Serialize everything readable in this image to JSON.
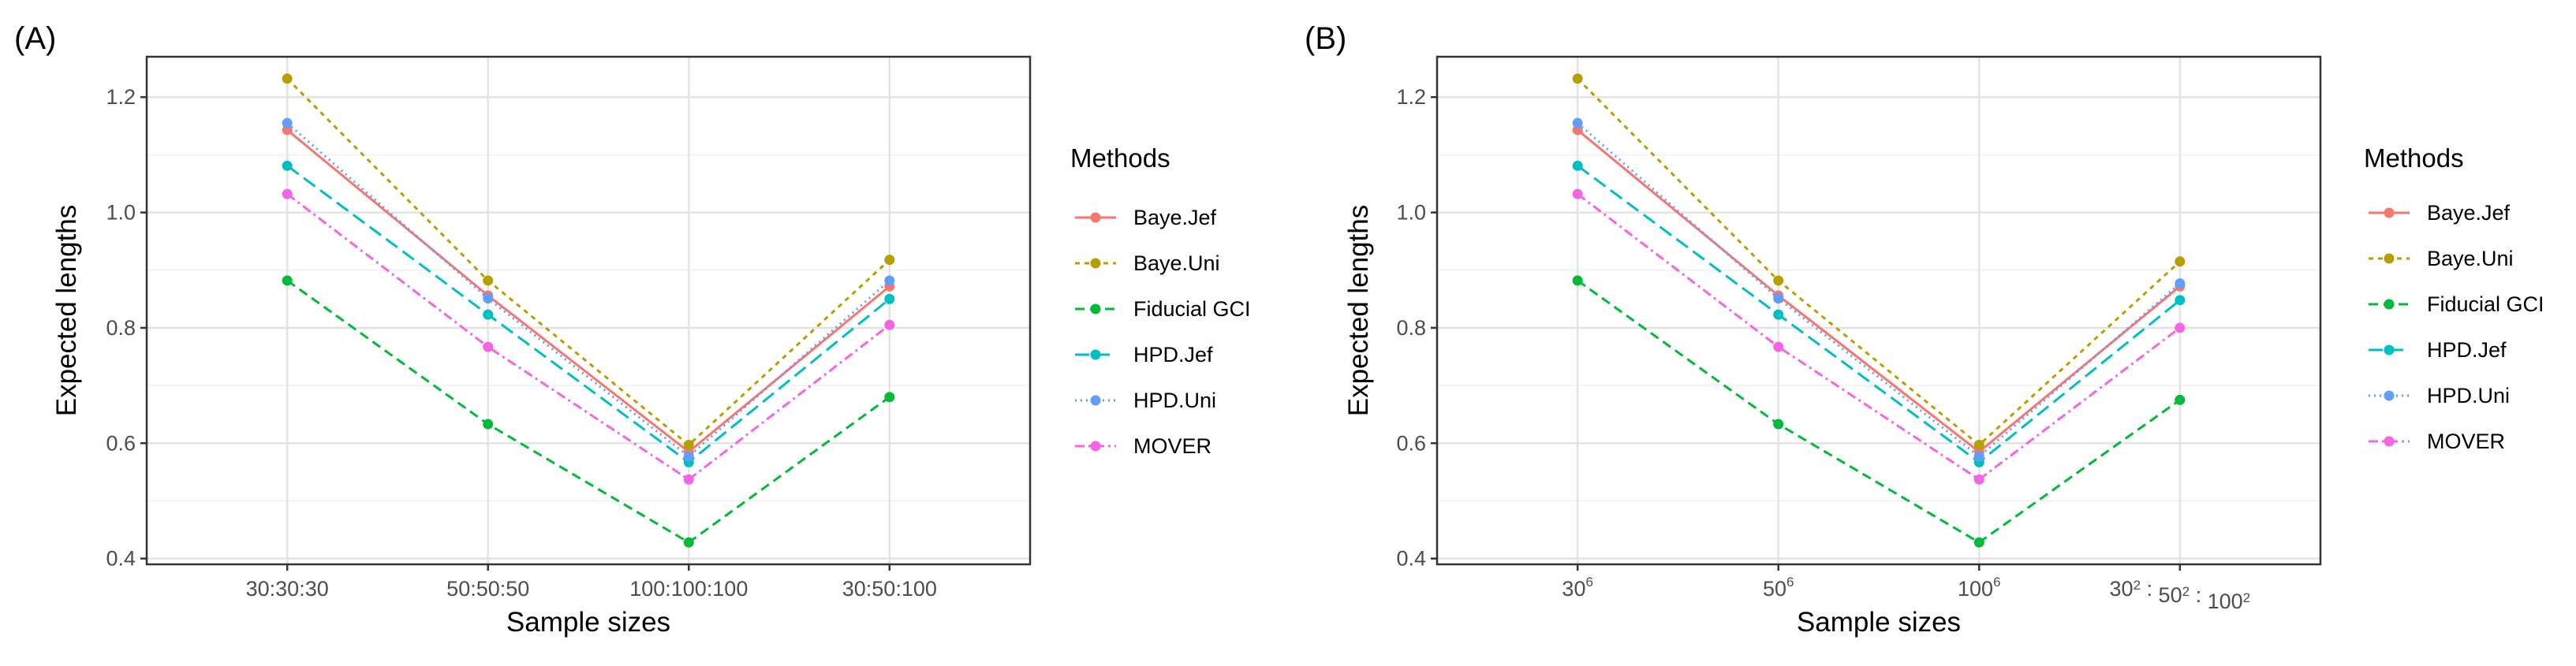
{
  "chart_data": [
    {
      "type": "line",
      "panel_label": "(A)",
      "xlabel": "Sample sizes",
      "ylabel": "Expected lengths",
      "categories": [
        {
          "base": "30:30:30",
          "sup": ""
        },
        {
          "base": "50:50:50",
          "sup": ""
        },
        {
          "base": "100:100:100",
          "sup": ""
        },
        {
          "base": "30:50:100",
          "sup": ""
        }
      ],
      "ylim": [
        0.39,
        1.27
      ],
      "yticks": [
        0.4,
        0.6,
        0.8,
        1.0,
        1.2
      ],
      "ytick_labels": [
        "0.4",
        "0.6",
        "0.8",
        "1.0",
        "1.2"
      ],
      "grid": true,
      "legend_title": "Methods",
      "series": [
        {
          "name": "Baye.Jef",
          "values": [
            1.143,
            0.856,
            0.585,
            0.872
          ]
        },
        {
          "name": "Baye.Uni",
          "values": [
            1.232,
            0.882,
            0.597,
            0.918
          ]
        },
        {
          "name": "Fiducial GCI",
          "values": [
            0.882,
            0.633,
            0.428,
            0.68
          ]
        },
        {
          "name": "HPD.Jef",
          "values": [
            1.081,
            0.823,
            0.567,
            0.85
          ]
        },
        {
          "name": "HPD.Uni",
          "values": [
            1.155,
            0.851,
            0.577,
            0.882
          ]
        },
        {
          "name": "MOVER",
          "values": [
            1.032,
            0.767,
            0.537,
            0.805
          ]
        }
      ]
    },
    {
      "type": "line",
      "panel_label": "(B)",
      "xlabel": "Sample sizes",
      "ylabel": "Expected lengths",
      "categories": [
        {
          "base": "30",
          "sup": "6"
        },
        {
          "base": "50",
          "sup": "6"
        },
        {
          "base": "100",
          "sup": "6"
        },
        {
          "base": "30",
          "sup": "2",
          "parts": [
            [
              "30",
              "2"
            ],
            [
              "50",
              "2"
            ],
            [
              "100",
              "2"
            ]
          ],
          "sep": " : "
        }
      ],
      "ylim": [
        0.39,
        1.27
      ],
      "yticks": [
        0.4,
        0.6,
        0.8,
        1.0,
        1.2
      ],
      "ytick_labels": [
        "0.4",
        "0.6",
        "0.8",
        "1.0",
        "1.2"
      ],
      "grid": true,
      "legend_title": "Methods",
      "series": [
        {
          "name": "Baye.Jef",
          "values": [
            1.143,
            0.856,
            0.585,
            0.872
          ]
        },
        {
          "name": "Baye.Uni",
          "values": [
            1.232,
            0.882,
            0.597,
            0.915
          ]
        },
        {
          "name": "Fiducial GCI",
          "values": [
            0.882,
            0.633,
            0.428,
            0.675
          ]
        },
        {
          "name": "HPD.Jef",
          "values": [
            1.081,
            0.823,
            0.567,
            0.848
          ]
        },
        {
          "name": "HPD.Uni",
          "values": [
            1.155,
            0.851,
            0.577,
            0.877
          ]
        },
        {
          "name": "MOVER",
          "values": [
            1.032,
            0.767,
            0.537,
            0.8
          ]
        }
      ]
    }
  ],
  "series_styles": {
    "Baye.Jef": {
      "color": "#F8766D",
      "dash": ""
    },
    "Baye.Uni": {
      "color": "#B79F00",
      "dash": "6,6"
    },
    "Fiducial GCI": {
      "color": "#00BA38",
      "dash": "12,7"
    },
    "HPD.Jef": {
      "color": "#00BFC4",
      "dash": "18,8"
    },
    "HPD.Uni": {
      "color": "#619CFF",
      "dash": "2,5"
    },
    "MOVER": {
      "color": "#F564E3",
      "dash": "12,5,3,5"
    }
  }
}
